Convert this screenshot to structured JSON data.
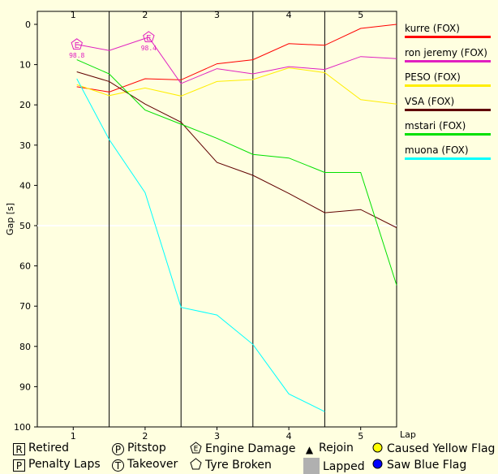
{
  "chart_data": {
    "type": "line",
    "xlabel": "Lap",
    "ylabel": "Gap [s]",
    "x_ticks": [
      1,
      2,
      3,
      4,
      5
    ],
    "y_ticks": [
      0,
      10,
      20,
      30,
      40,
      50,
      60,
      70,
      80,
      90,
      100
    ],
    "xlim": [
      0.5,
      5.5
    ],
    "ylim": [
      0,
      100
    ],
    "y_inverted": true,
    "lap_boundaries": [
      1.5,
      2.5,
      3.5,
      4.5
    ],
    "grid": "horizontal gridline at 50",
    "series": [
      {
        "name": "kurre (FOX)",
        "color": "#ff0000",
        "points": [
          [
            1.05,
            15.5
          ],
          [
            1.5,
            16.8
          ],
          [
            2.0,
            13.5
          ],
          [
            2.5,
            13.8
          ],
          [
            3.0,
            9.8
          ],
          [
            3.5,
            8.8
          ],
          [
            4.0,
            4.8
          ],
          [
            4.5,
            5.2
          ],
          [
            5.0,
            1.0
          ],
          [
            5.5,
            0.0
          ]
        ]
      },
      {
        "name": "ron jeremy (FOX)",
        "color": "#e020c0",
        "points": [
          [
            1.05,
            5.0
          ],
          [
            1.5,
            6.5
          ],
          [
            2.05,
            3.2
          ],
          [
            2.5,
            14.7
          ],
          [
            3.0,
            11.0
          ],
          [
            3.5,
            12.3
          ],
          [
            4.0,
            10.5
          ],
          [
            4.5,
            11.2
          ],
          [
            5.0,
            8.0
          ],
          [
            5.5,
            8.5
          ]
        ]
      },
      {
        "name": "PESO (FOX)",
        "color": "#ffee00",
        "points": [
          [
            1.05,
            15.0
          ],
          [
            1.5,
            17.7
          ],
          [
            2.0,
            15.8
          ],
          [
            2.5,
            17.8
          ],
          [
            3.0,
            14.2
          ],
          [
            3.5,
            13.7
          ],
          [
            4.0,
            10.8
          ],
          [
            4.5,
            12.0
          ],
          [
            5.0,
            18.7
          ],
          [
            5.5,
            19.8
          ]
        ]
      },
      {
        "name": "VSA (FOX)",
        "color": "#600000",
        "points": [
          [
            1.05,
            11.8
          ],
          [
            1.5,
            14.2
          ],
          [
            2.0,
            19.8
          ],
          [
            2.5,
            24.3
          ],
          [
            3.0,
            34.3
          ],
          [
            3.5,
            37.5
          ],
          [
            4.0,
            42.0
          ],
          [
            4.5,
            46.8
          ],
          [
            5.0,
            46.0
          ],
          [
            5.5,
            50.5
          ]
        ]
      },
      {
        "name": "mstari (FOX)",
        "color": "#00e000",
        "points": [
          [
            1.05,
            8.8
          ],
          [
            1.5,
            12.3
          ],
          [
            2.0,
            21.3
          ],
          [
            2.5,
            24.8
          ],
          [
            3.0,
            28.3
          ],
          [
            3.5,
            32.3
          ],
          [
            4.0,
            33.2
          ],
          [
            4.5,
            36.8
          ],
          [
            5.0,
            36.8
          ],
          [
            5.5,
            64.8
          ]
        ]
      },
      {
        "name": "muona (FOX)",
        "color": "#00ffff",
        "points": [
          [
            1.05,
            13.5
          ],
          [
            1.5,
            28.6
          ],
          [
            2.0,
            41.8
          ],
          [
            2.5,
            70.3
          ],
          [
            3.0,
            72.2
          ],
          [
            3.5,
            79.5
          ],
          [
            4.0,
            91.8
          ],
          [
            4.5,
            96.2
          ]
        ]
      }
    ],
    "events": [
      {
        "series": "ron jeremy (FOX)",
        "symbol": "E",
        "x": 1.05,
        "y": 5.0,
        "label": "98.8"
      },
      {
        "series": "ron jeremy (FOX)",
        "symbol": "E",
        "x": 2.05,
        "y": 3.2,
        "label": "98.4"
      }
    ]
  },
  "key": [
    {
      "symbol": "R",
      "shape": "box",
      "label": "Retired"
    },
    {
      "symbol": "P",
      "shape": "circle",
      "label": "Pitstop"
    },
    {
      "symbol": "E",
      "shape": "pentagon",
      "label": "Engine Damage"
    },
    {
      "symbol": "▲",
      "shape": "plain",
      "label": "Rejoin"
    },
    {
      "symbol": "●",
      "shape": "yellow-dot",
      "label": "Caused Yellow Flag"
    },
    {
      "symbol": "P",
      "shape": "box",
      "label": "Penalty Laps"
    },
    {
      "symbol": "T",
      "shape": "circle",
      "label": "Takeover"
    },
    {
      "symbol": "",
      "shape": "pentagon",
      "label": "Tyre Broken"
    },
    {
      "symbol": "",
      "shape": "grey-box",
      "label": "Lapped"
    },
    {
      "symbol": "●",
      "shape": "blue-dot",
      "label": "Saw Blue Flag"
    }
  ]
}
